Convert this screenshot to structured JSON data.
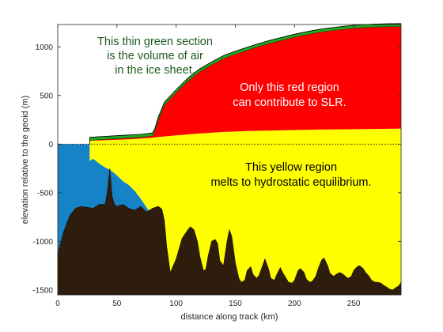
{
  "chart_data": {
    "type": "area",
    "xlabel": "distance along track (km)",
    "ylabel": "elevation relative to the geoid (m)",
    "xlim": [
      0,
      290
    ],
    "ylim": [
      -1550,
      1230
    ],
    "xticks": [
      "0",
      "50",
      "100",
      "150",
      "200",
      "250"
    ],
    "yticks": [
      "-1500",
      "-1000",
      "-500",
      "0",
      "500",
      "1000"
    ],
    "grid": false,
    "sea_level_line": "dotted at 0",
    "colors": {
      "ocean": "#1583c6",
      "hydrostatic_region": "#ffff00",
      "slr_region": "#ff0000",
      "air_volume": "#22aa22",
      "bed": "#2e1c0c"
    },
    "annotations": [
      {
        "lines": [
          "This thin green section",
          "is the volume of air",
          "in the ice sheet."
        ],
        "color": "#1e5a1e"
      },
      {
        "lines": [
          "Only this red region",
          "can contribute to SLR."
        ],
        "color": "#ffffff"
      },
      {
        "lines": [
          "This yellow region",
          "melts to hydrostatic equilibrium."
        ],
        "color": "#000000"
      }
    ],
    "series": {
      "surface": {
        "x": [
          27,
          40,
          55,
          70,
          80,
          82,
          85,
          90,
          100,
          110,
          120,
          130,
          140,
          150,
          160,
          170,
          180,
          190,
          200,
          210,
          220,
          230,
          240,
          250,
          260,
          270,
          280,
          290
        ],
        "y": [
          40,
          50,
          60,
          70,
          85,
          130,
          250,
          400,
          530,
          650,
          745,
          815,
          880,
          925,
          965,
          1005,
          1040,
          1070,
          1100,
          1125,
          1148,
          1165,
          1180,
          1192,
          1200,
          1205,
          1208,
          1210
        ]
      },
      "air_thickness": 30,
      "hydrostatic_top": {
        "x": [
          27,
          40,
          60,
          80,
          82,
          100,
          120,
          140,
          160,
          180,
          200,
          220,
          240,
          260,
          280,
          290
        ],
        "y": [
          35,
          40,
          50,
          65,
          70,
          90,
          110,
          125,
          135,
          140,
          145,
          150,
          152,
          155,
          158,
          160
        ]
      },
      "ice_base": {
        "x": [
          27,
          30,
          35,
          40,
          45,
          50,
          55,
          60,
          65,
          70,
          75,
          80,
          82
        ],
        "y": [
          -170,
          -150,
          -200,
          -240,
          -270,
          -320,
          -380,
          -420,
          -480,
          -560,
          -650,
          -730,
          -740
        ]
      },
      "bed": {
        "x": [
          0,
          5,
          10,
          15,
          20,
          25,
          30,
          35,
          40,
          42,
          44,
          46,
          48,
          50,
          55,
          60,
          65,
          70,
          75,
          80,
          85,
          88,
          90,
          92,
          95,
          100,
          105,
          110,
          112,
          115,
          118,
          120,
          123,
          125,
          127,
          130,
          133,
          135,
          137,
          140,
          143,
          145,
          147,
          150,
          153,
          155,
          158,
          160,
          163,
          165,
          168,
          170,
          173,
          175,
          178,
          180,
          183,
          185,
          188,
          190,
          193,
          195,
          198,
          200,
          203,
          205,
          208,
          210,
          213,
          215,
          218,
          220,
          223,
          225,
          228,
          230,
          233,
          235,
          238,
          240,
          243,
          245,
          248,
          250,
          253,
          255,
          258,
          260,
          263,
          265,
          268,
          270,
          273,
          275,
          278,
          280,
          283,
          285,
          288,
          290
        ],
        "y": [
          -1130,
          -900,
          -740,
          -660,
          -640,
          -650,
          -660,
          -620,
          -620,
          -480,
          -250,
          -540,
          -620,
          -640,
          -620,
          -660,
          -680,
          -640,
          -700,
          -660,
          -640,
          -670,
          -780,
          -1050,
          -1320,
          -1180,
          -970,
          -880,
          -850,
          -880,
          -1000,
          -1150,
          -1300,
          -1290,
          -1150,
          -1000,
          -980,
          -1020,
          -1200,
          -1250,
          -1000,
          -880,
          -950,
          -1220,
          -1380,
          -1420,
          -1400,
          -1300,
          -1260,
          -1340,
          -1380,
          -1350,
          -1250,
          -1180,
          -1280,
          -1380,
          -1400,
          -1340,
          -1270,
          -1320,
          -1380,
          -1420,
          -1430,
          -1400,
          -1300,
          -1280,
          -1320,
          -1390,
          -1420,
          -1410,
          -1360,
          -1280,
          -1190,
          -1170,
          -1250,
          -1330,
          -1360,
          -1340,
          -1320,
          -1330,
          -1360,
          -1380,
          -1360,
          -1300,
          -1260,
          -1250,
          -1280,
          -1320,
          -1360,
          -1400,
          -1420,
          -1420,
          -1430,
          -1450,
          -1470,
          -1490,
          -1500,
          -1480,
          -1460,
          -1420
        ]
      }
    }
  }
}
